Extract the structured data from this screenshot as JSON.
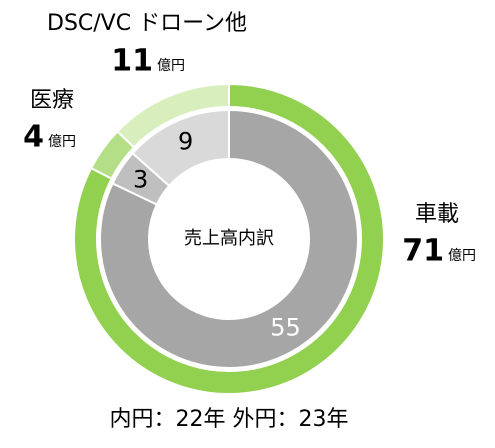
{
  "chart_data": {
    "type": "donut",
    "center_label": "売上高内訳",
    "caption": "内円：22年 外円：23年",
    "unit": "億円",
    "categories": [
      "車載",
      "医療",
      "DSC/VC ドローン他"
    ],
    "inner": {
      "values": [
        55,
        3,
        9
      ],
      "colors": [
        "#a6a6a6",
        "#bfbfbf",
        "#d9d9d9"
      ],
      "label_colors": [
        "#ffffff",
        "#000000",
        "#000000"
      ]
    },
    "outer": {
      "values": [
        71,
        4,
        11
      ],
      "colors": [
        "#92d050",
        "#b4df87",
        "#d8efbd"
      ]
    }
  }
}
